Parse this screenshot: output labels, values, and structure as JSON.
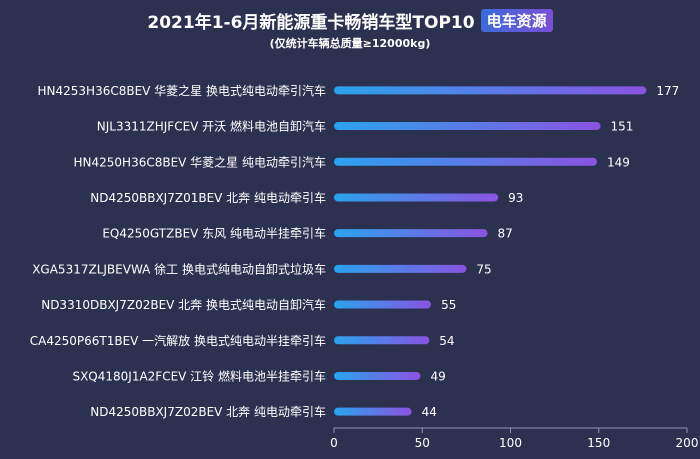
{
  "header": {
    "title": "2021年1-6月新能源重卡畅销车型TOP10",
    "logo_text": "电车资源",
    "subtitle": "(仅统计车辆总质量≥12000kg)"
  },
  "colors": {
    "background": "#2d3150",
    "bar_start": "#2aa3ee",
    "bar_end": "#8a53e2",
    "axis": "#8f94b0",
    "text": "#ffffff"
  },
  "chart_data": {
    "type": "bar",
    "orientation": "horizontal",
    "title": "2021年1-6月新能源重卡畅销车型TOP10",
    "subtitle": "(仅统计车辆总质量≥12000kg)",
    "categories": [
      "HN4253H36C8BEV 华菱之星 换电式纯电动牵引汽车",
      "NJL3311ZHJFCEV 开沃 燃料电池自卸汽车",
      "HN4250H36C8BEV 华菱之星 纯电动牵引汽车",
      "ND4250BBXJ7Z01BEV 北奔 纯电动牵引车",
      "EQ4250GTZBEV 东风 纯电动半挂牵引车",
      "XGA5317ZLJBEVWA 徐工 换电式纯电动自卸式垃圾车",
      "ND3310DBXJ7Z02BEV 北奔 换电式纯电动自卸汽车",
      "CA4250P66T1BEV 一汽解放 换电式纯电动半挂牵引车",
      "SXQ4180J1A2FCEV 江铃 燃料电池半挂牵引车",
      "ND4250BBXJ7Z02BEV 北奔 纯电动牵引车"
    ],
    "values": [
      177,
      151,
      149,
      93,
      87,
      75,
      55,
      54,
      49,
      44
    ],
    "xlim": [
      0,
      200
    ],
    "xticks": [
      0,
      50,
      100,
      150,
      200
    ],
    "grid": false,
    "legend": "none"
  }
}
